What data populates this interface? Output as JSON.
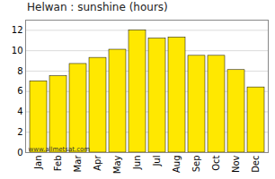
{
  "chart_data": {
    "type": "bar",
    "title": "Helwan : sunshine (hours)",
    "categories": [
      "Jan",
      "Feb",
      "Mar",
      "Apr",
      "May",
      "Jun",
      "Jul",
      "Aug",
      "Sep",
      "Oct",
      "Nov",
      "Dec"
    ],
    "values": [
      7.0,
      7.5,
      8.7,
      9.3,
      10.1,
      12.0,
      11.2,
      11.3,
      9.5,
      9.5,
      8.1,
      6.4
    ],
    "color": "#FFE800",
    "ylim": [
      0,
      13
    ],
    "yticks": [
      0,
      2,
      4,
      6,
      8,
      10,
      12
    ],
    "grid": true,
    "annotations": [
      "www.allmetsat.com"
    ]
  }
}
